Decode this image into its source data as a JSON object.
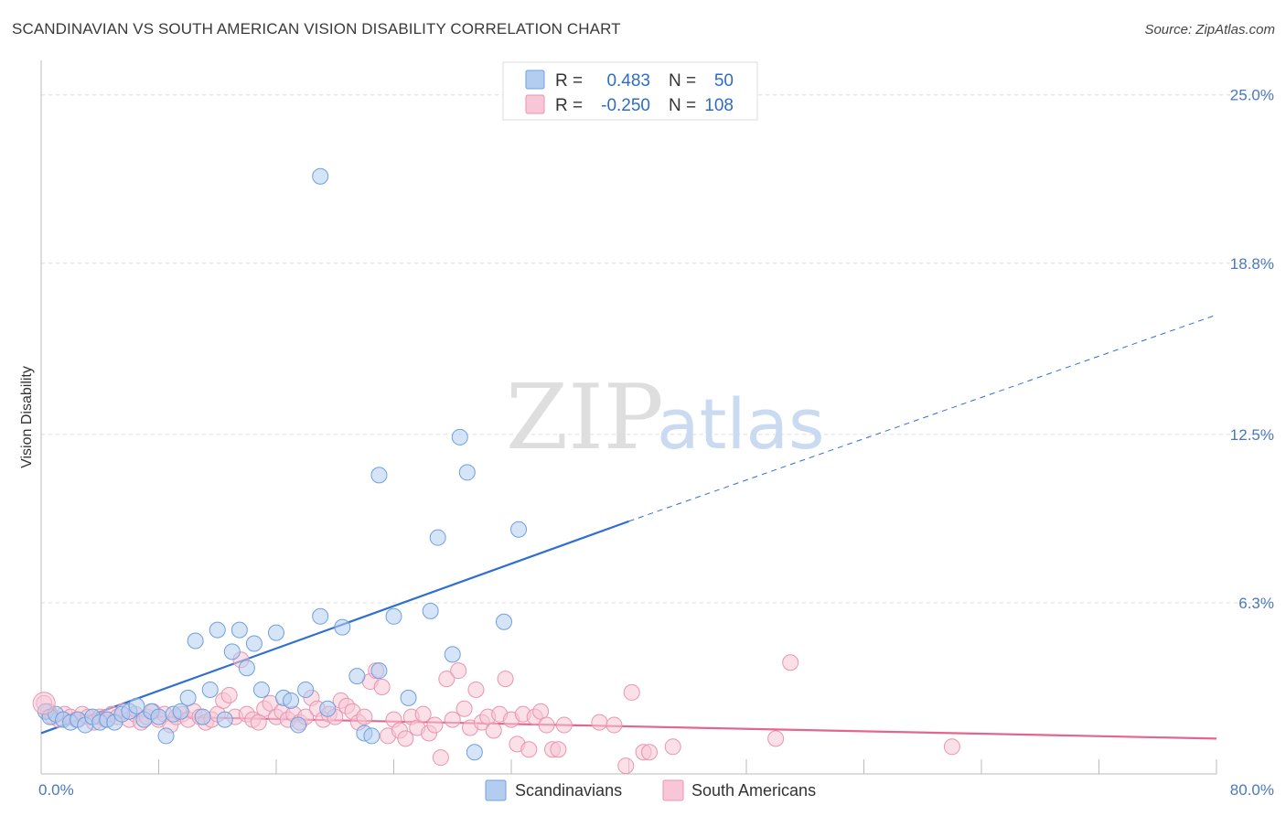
{
  "header": {
    "title": "SCANDINAVIAN VS SOUTH AMERICAN VISION DISABILITY CORRELATION CHART",
    "source": "Source: ZipAtlas.com"
  },
  "watermark": {
    "zip": "ZIP",
    "atlas": "atlas"
  },
  "legend": {
    "rows": [
      {
        "r_label": "R =",
        "r_value": "0.483",
        "n_label": "N =",
        "n_value": "50",
        "color": "#a7c6ee"
      },
      {
        "r_label": "R =",
        "r_value": "-0.250",
        "n_label": "N =",
        "n_value": "108",
        "color": "#f6b5c8"
      }
    ]
  },
  "chart_data": {
    "type": "scatter",
    "title": "SCANDINAVIAN VS SOUTH AMERICAN VISION DISABILITY CORRELATION CHART",
    "xlabel": "",
    "ylabel": "Vision Disability",
    "xlim": [
      0,
      80
    ],
    "ylim": [
      0,
      26
    ],
    "x_tick_labels": [
      "0.0%",
      "80.0%"
    ],
    "y_ticks": [
      6.3,
      12.5,
      18.8,
      25.0
    ],
    "y_tick_labels": [
      "6.3%",
      "12.5%",
      "18.8%",
      "25.0%"
    ],
    "grid": true,
    "legend_position": "top-center",
    "series": [
      {
        "name": "Scandinavians",
        "color": "#6f9fe0",
        "fill": "#b3cdf0",
        "trend": {
          "x": [
            0,
            40
          ],
          "y": [
            1.5,
            9.3
          ],
          "dashed_to": [
            80,
            16.9
          ]
        },
        "points": [
          [
            0.3,
            2.3
          ],
          [
            0.6,
            2.1
          ],
          [
            1,
            2.2
          ],
          [
            1.5,
            2.0
          ],
          [
            2,
            1.9
          ],
          [
            2.5,
            2.0
          ],
          [
            3,
            1.8
          ],
          [
            3.5,
            2.1
          ],
          [
            4,
            1.9
          ],
          [
            4.5,
            2.0
          ],
          [
            5,
            1.9
          ],
          [
            5.5,
            2.2
          ],
          [
            6,
            2.3
          ],
          [
            6.5,
            2.5
          ],
          [
            7,
            2.0
          ],
          [
            7.5,
            2.3
          ],
          [
            8,
            2.1
          ],
          [
            8.5,
            1.4
          ],
          [
            9,
            2.2
          ],
          [
            9.5,
            2.3
          ],
          [
            10,
            2.8
          ],
          [
            10.5,
            4.9
          ],
          [
            11,
            2.1
          ],
          [
            11.5,
            3.1
          ],
          [
            12,
            5.3
          ],
          [
            12.5,
            2.0
          ],
          [
            13,
            4.5
          ],
          [
            13.5,
            5.3
          ],
          [
            14,
            3.9
          ],
          [
            14.5,
            4.8
          ],
          [
            15,
            3.1
          ],
          [
            16,
            5.2
          ],
          [
            16.5,
            2.8
          ],
          [
            17,
            2.7
          ],
          [
            17.5,
            1.8
          ],
          [
            18,
            3.1
          ],
          [
            19,
            5.8
          ],
          [
            19.5,
            2.4
          ],
          [
            20.5,
            5.4
          ],
          [
            21.5,
            3.6
          ],
          [
            19,
            22
          ],
          [
            22,
            1.5
          ],
          [
            23,
            3.8
          ],
          [
            22.5,
            1.4
          ],
          [
            24,
            5.8
          ],
          [
            23,
            11
          ],
          [
            26.5,
            6.0
          ],
          [
            27,
            8.7
          ],
          [
            28,
            4.4
          ],
          [
            28.5,
            12.4
          ],
          [
            29,
            11.1
          ],
          [
            29.5,
            0.8
          ],
          [
            25,
            2.8
          ],
          [
            31.5,
            5.6
          ],
          [
            32.5,
            9
          ]
        ]
      },
      {
        "name": "South Americans",
        "color": "#e895b0",
        "fill": "#f8c6d6",
        "trend": {
          "x": [
            0,
            80
          ],
          "y": [
            2.2,
            1.3
          ]
        },
        "points": [
          [
            0.2,
            2.6
          ],
          [
            0.5,
            2.3
          ],
          [
            0.8,
            2.1
          ],
          [
            1.2,
            2.0
          ],
          [
            1.6,
            2.2
          ],
          [
            2,
            2.1
          ],
          [
            2.4,
            2.0
          ],
          [
            2.8,
            2.2
          ],
          [
            3.2,
            2.1
          ],
          [
            3.6,
            1.9
          ],
          [
            4,
            2.1
          ],
          [
            4.4,
            2.0
          ],
          [
            4.8,
            2.2
          ],
          [
            5.2,
            2.1
          ],
          [
            5.6,
            2.3
          ],
          [
            6,
            2.0
          ],
          [
            6.4,
            2.2
          ],
          [
            6.8,
            1.9
          ],
          [
            7.2,
            2.1
          ],
          [
            7.6,
            2.3
          ],
          [
            8,
            2.0
          ],
          [
            8.4,
            2.2
          ],
          [
            8.8,
            1.8
          ],
          [
            9.2,
            2.1
          ],
          [
            9.6,
            2.2
          ],
          [
            10,
            2.0
          ],
          [
            10.4,
            2.3
          ],
          [
            10.8,
            2.1
          ],
          [
            11.2,
            1.9
          ],
          [
            11.6,
            2.0
          ],
          [
            12,
            2.2
          ],
          [
            12.4,
            2.7
          ],
          [
            12.8,
            2.9
          ],
          [
            13.2,
            2.1
          ],
          [
            13.6,
            4.2
          ],
          [
            14,
            2.2
          ],
          [
            14.4,
            2.0
          ],
          [
            14.8,
            1.9
          ],
          [
            15.2,
            2.4
          ],
          [
            15.6,
            2.6
          ],
          [
            16,
            2.1
          ],
          [
            16.4,
            2.3
          ],
          [
            16.8,
            2.0
          ],
          [
            17.2,
            2.2
          ],
          [
            17.6,
            1.9
          ],
          [
            18,
            2.1
          ],
          [
            18.4,
            2.8
          ],
          [
            18.8,
            2.4
          ],
          [
            19.2,
            2.0
          ],
          [
            19.6,
            2.2
          ],
          [
            20,
            2.1
          ],
          [
            20.4,
            2.7
          ],
          [
            20.8,
            2.5
          ],
          [
            21.2,
            2.3
          ],
          [
            21.6,
            1.9
          ],
          [
            22,
            2.1
          ],
          [
            22.4,
            3.4
          ],
          [
            22.8,
            3.8
          ],
          [
            23.2,
            3.2
          ],
          [
            23.6,
            1.4
          ],
          [
            24,
            2.0
          ],
          [
            24.4,
            1.6
          ],
          [
            24.8,
            1.3
          ],
          [
            25.2,
            2.1
          ],
          [
            25.6,
            1.7
          ],
          [
            26,
            2.2
          ],
          [
            26.4,
            1.5
          ],
          [
            26.8,
            1.8
          ],
          [
            27.2,
            0.6
          ],
          [
            27.6,
            3.5
          ],
          [
            28,
            2.0
          ],
          [
            28.4,
            3.8
          ],
          [
            28.8,
            2.4
          ],
          [
            29.2,
            1.7
          ],
          [
            29.6,
            3.1
          ],
          [
            30,
            1.9
          ],
          [
            30.4,
            2.1
          ],
          [
            30.8,
            1.6
          ],
          [
            31.2,
            2.2
          ],
          [
            31.6,
            3.5
          ],
          [
            32,
            2.0
          ],
          [
            32.4,
            1.1
          ],
          [
            32.8,
            2.2
          ],
          [
            33.2,
            0.9
          ],
          [
            33.6,
            2.1
          ],
          [
            34,
            2.3
          ],
          [
            34.4,
            1.8
          ],
          [
            34.8,
            0.9
          ],
          [
            35.2,
            0.9
          ],
          [
            35.6,
            1.8
          ],
          [
            38,
            1.9
          ],
          [
            39,
            1.8
          ],
          [
            39.8,
            0.3
          ],
          [
            40.2,
            3.0
          ],
          [
            41,
            0.8
          ],
          [
            41.4,
            0.8
          ],
          [
            43,
            1.0
          ],
          [
            50,
            1.3
          ],
          [
            51,
            4.1
          ],
          [
            62,
            1.0
          ]
        ]
      }
    ]
  }
}
